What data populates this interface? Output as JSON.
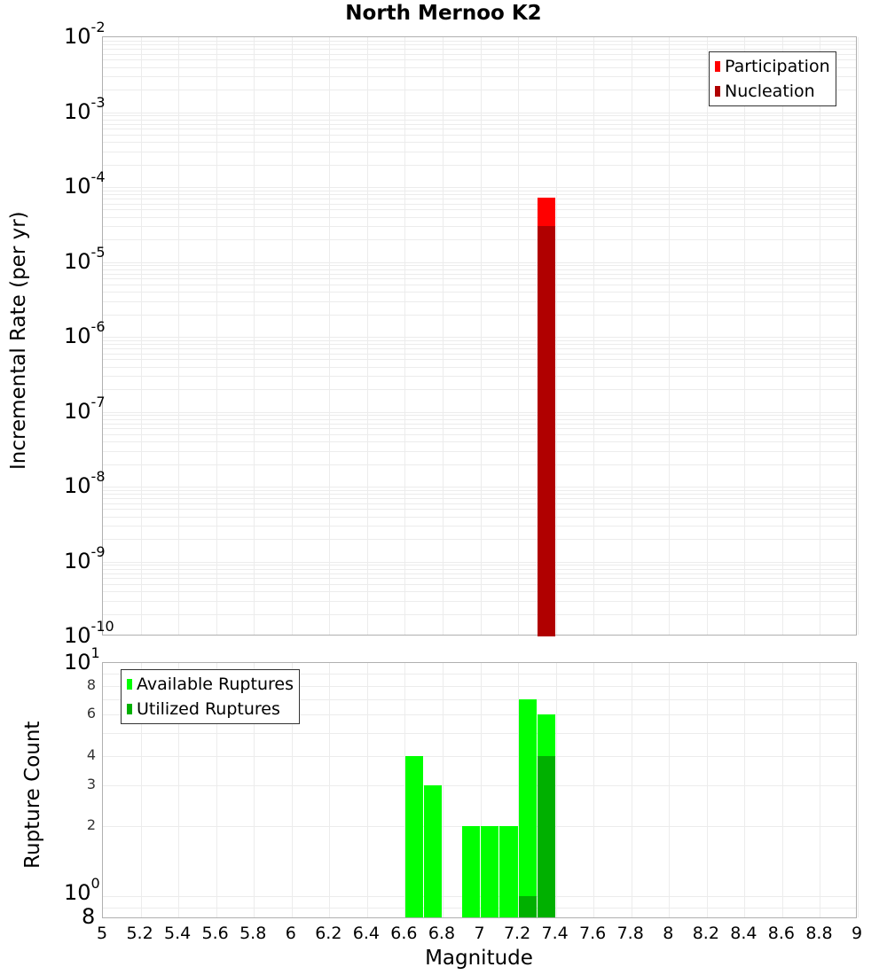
{
  "title": "North Mernoo K2",
  "chart_data": [
    {
      "type": "bar",
      "title": "North Mernoo K2",
      "xlabel": "Magnitude",
      "ylabel": "Incremental Rate (per yr)",
      "yscale": "log",
      "ylim": [
        1e-10,
        0.01
      ],
      "xlim": [
        5,
        9
      ],
      "grid": true,
      "legend_position": "top-right",
      "y_tick_labels": [
        "10^-2",
        "10^-3",
        "10^-4",
        "10^-5",
        "10^-6",
        "10^-7",
        "10^-8",
        "10^-9",
        "10^-10"
      ],
      "series": [
        {
          "name": "Participation",
          "color": "#ff0000",
          "x": [
            7.35
          ],
          "values": [
            7.2e-05
          ]
        },
        {
          "name": "Nucleation",
          "color": "#b00000",
          "x": [
            7.35
          ],
          "values": [
            3e-05
          ]
        }
      ]
    },
    {
      "type": "bar",
      "xlabel": "Magnitude",
      "ylabel": "Rupture Count",
      "yscale": "log",
      "ylim": [
        0.8,
        10
      ],
      "xlim": [
        5,
        9
      ],
      "grid": true,
      "legend_position": "top-left",
      "y_tick_labels": [
        "10^1",
        "8",
        "6",
        "4",
        "3",
        "2",
        "10^0",
        "8"
      ],
      "x_tick_labels": [
        "5",
        "5.2",
        "5.4",
        "5.6",
        "5.8",
        "6",
        "6.2",
        "6.4",
        "6.6",
        "6.8",
        "7",
        "7.2",
        "7.4",
        "7.6",
        "7.8",
        "8",
        "8.2",
        "8.4",
        "8.6",
        "8.8",
        "9"
      ],
      "categories": [
        6.65,
        6.75,
        6.95,
        7.05,
        7.15,
        7.25,
        7.35
      ],
      "series": [
        {
          "name": "Available Ruptures",
          "color": "#00ff00",
          "values": [
            4,
            3,
            2,
            2,
            2,
            7,
            6
          ]
        },
        {
          "name": "Utilized Ruptures",
          "color": "#00b000",
          "values": [
            0,
            0,
            0,
            0,
            0,
            1,
            4
          ]
        }
      ]
    }
  ],
  "top": {
    "ylabel": "Incremental Rate (per yr)",
    "legend": [
      {
        "label": "Participation",
        "color": "#ff0000"
      },
      {
        "label": "Nucleation",
        "color": "#b00000"
      }
    ]
  },
  "bottom": {
    "ylabel": "Rupture Count",
    "xlabel": "Magnitude",
    "legend": [
      {
        "label": "Available Ruptures",
        "color": "#00ff00"
      },
      {
        "label": "Utilized Ruptures",
        "color": "#00b000"
      }
    ]
  }
}
